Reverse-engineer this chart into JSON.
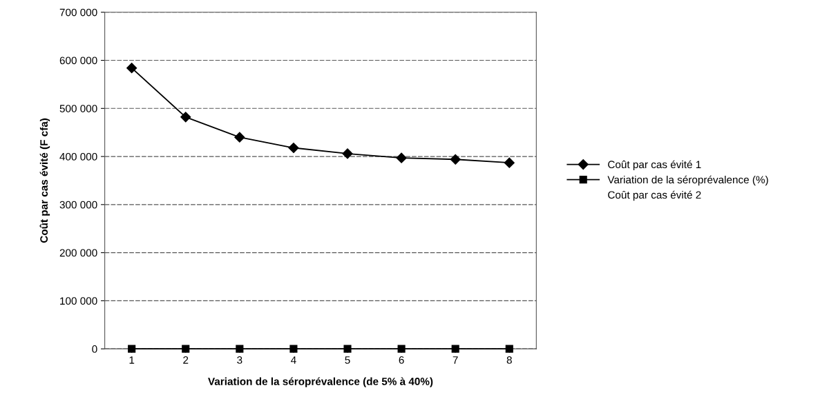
{
  "chart_data": {
    "type": "line",
    "xlabel": "Variation de la séroprévalence (de 5% à 40%)",
    "ylabel": "Coût par cas évité (F cfa)",
    "categories": [
      "1",
      "2",
      "3",
      "4",
      "5",
      "6",
      "7",
      "8"
    ],
    "series": [
      {
        "name": "Coût par cas évité 1",
        "color": "#000000",
        "marker": "diamond",
        "line_style": "solid",
        "values": [
          584000,
          482000,
          440000,
          418000,
          406000,
          397000,
          394000,
          387000
        ]
      },
      {
        "name": "Variation de la séroprévalence (%)",
        "color": "#000000",
        "marker": "square",
        "line_style": "solid",
        "values": [
          0,
          0,
          0,
          0,
          0,
          0,
          0,
          0
        ]
      },
      {
        "name": "Coût par cas évité 2",
        "marker": "none",
        "line_style": "none",
        "values": [
          null,
          null,
          null,
          null,
          null,
          null,
          null,
          null
        ]
      }
    ],
    "ylim": [
      0,
      700000
    ],
    "yticks": [
      {
        "value": 0,
        "label": "0"
      },
      {
        "value": 100000,
        "label": "100 000"
      },
      {
        "value": 200000,
        "label": "200 000"
      },
      {
        "value": 300000,
        "label": "300 000"
      },
      {
        "value": 400000,
        "label": "400 000"
      },
      {
        "value": 500000,
        "label": "500 000"
      },
      {
        "value": 600000,
        "label": "600 000"
      },
      {
        "value": 700000,
        "label": "700 000"
      }
    ],
    "grid": "y",
    "legend": "right"
  }
}
